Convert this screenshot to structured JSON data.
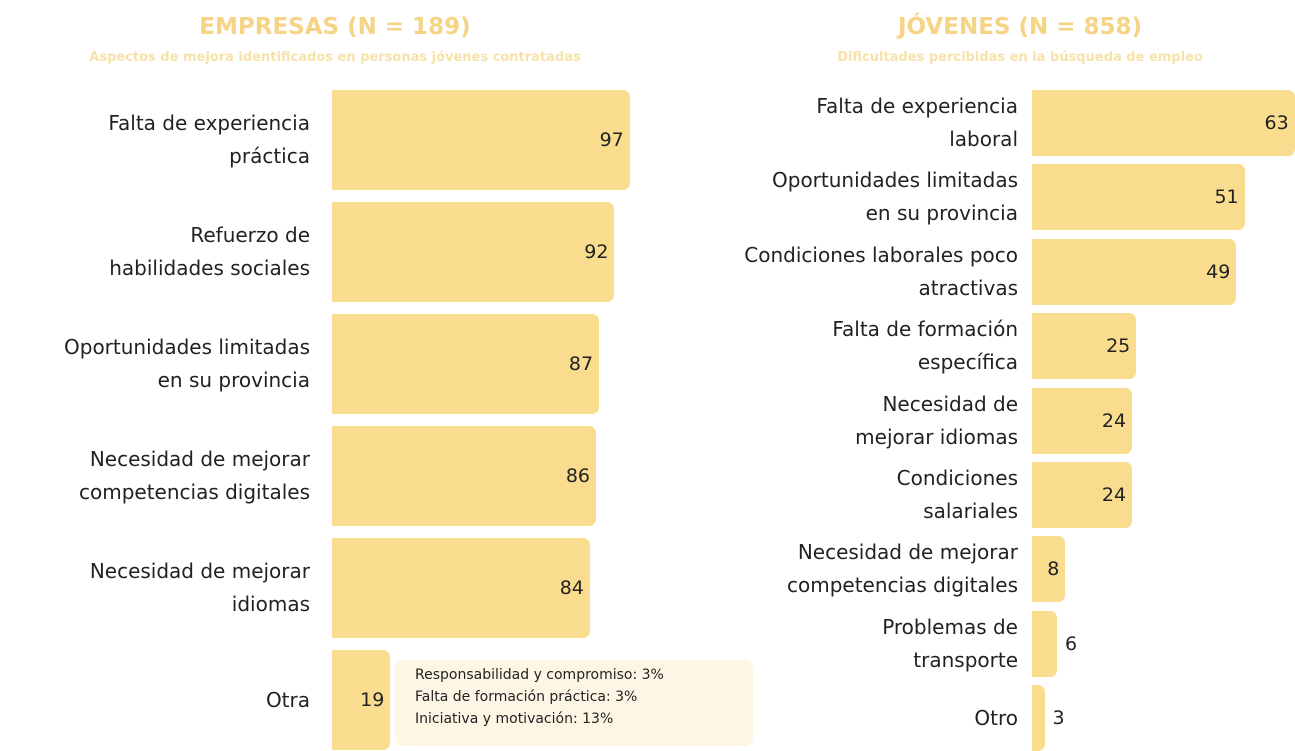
{
  "chart_data": [
    {
      "type": "bar",
      "orientation": "horizontal",
      "title": "EMPRESAS (N = 189)",
      "subtitle": "Aspectos de mejora identificados en personas jóvenes contratadas",
      "categories": [
        "Falta de experiencia\npráctica",
        "Refuerzo de\nhabilidades sociales",
        "Oportunidades limitadas\nen su provincia",
        "Necesidad de mejorar\ncompetencias digitales",
        "Necesidad de mejorar\nidiomas",
        "Otra"
      ],
      "values": [
        97,
        92,
        87,
        86,
        84,
        19
      ],
      "color": "#f9dc8e",
      "annotations": [
        "Responsabilidad y compromiso: 3%",
        "Falta de formación práctica: 3%",
        "Iniciativa y motivación: 13%"
      ]
    },
    {
      "type": "bar",
      "orientation": "horizontal",
      "title": "JÓVENES (N = 858)",
      "subtitle": "Dificultades percibidas en la búsqueda de empleo",
      "categories": [
        "Falta de experiencia\nlaboral",
        "Oportunidades limitadas\nen su provincia",
        "Condiciones laborales poco\natractivas",
        "Falta de formación\nespecífica",
        "Necesidad de\nmejorar idiomas",
        "Condiciones\nsalariales",
        "Necesidad de mejorar\ncompetencias digitales",
        "Problemas de\ntransporte",
        "Otro"
      ],
      "values": [
        63,
        51,
        49,
        25,
        24,
        24,
        8,
        6,
        3
      ],
      "color": "#f9dc8e"
    }
  ]
}
